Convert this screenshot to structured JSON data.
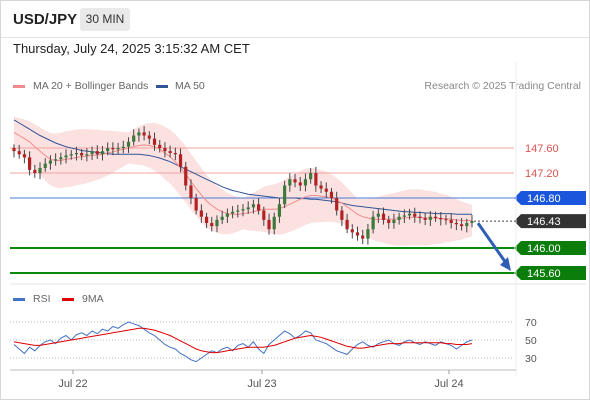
{
  "header": {
    "symbol": "USD/JPY",
    "timeframe": "30 MIN",
    "datetime": "Thursday, July 24, 2025 3:15:32 AM CET"
  },
  "legend": {
    "ma20_label": "MA 20 + Bollinger Bands",
    "ma50_label": "MA 50",
    "copyright": "Research © 2025 Trading Central",
    "ma20_color": "#f28b8b",
    "ma50_color": "#2f5597"
  },
  "rsi_legend": {
    "rsi_label": "RSI",
    "ma_label": "9MA",
    "rsi_color": "#4472c4",
    "ma_color": "#e00000"
  },
  "chart_data": {
    "type": "candlestick",
    "price_range": [
      145.5,
      148.2
    ],
    "x_labels": [
      "Jul 22",
      "Jul 23",
      "Jul 24"
    ],
    "levels": [
      {
        "label": "147.60",
        "value": 147.6,
        "style": "red-line",
        "color": "#d9534f"
      },
      {
        "label": "147.20",
        "value": 147.2,
        "style": "red-line",
        "color": "#d9534f"
      },
      {
        "label": "146.80",
        "value": 146.8,
        "style": "blue-line",
        "color": "#1a56db"
      },
      {
        "label": "146.43",
        "value": 146.43,
        "style": "current",
        "color": "#333333"
      },
      {
        "label": "146.00",
        "value": 146.0,
        "style": "green-line",
        "color": "#0a7d0a"
      },
      {
        "label": "145.60",
        "value": 145.6,
        "style": "green-line",
        "color": "#0a7d0a"
      }
    ],
    "closes": [
      147.55,
      147.5,
      147.45,
      147.25,
      147.2,
      147.28,
      147.35,
      147.4,
      147.42,
      147.45,
      147.48,
      147.5,
      147.52,
      147.48,
      147.5,
      147.55,
      147.5,
      147.55,
      147.6,
      147.58,
      147.6,
      147.62,
      147.7,
      147.8,
      147.85,
      147.8,
      147.75,
      147.65,
      147.6,
      147.55,
      147.52,
      147.5,
      147.3,
      147.0,
      146.8,
      146.6,
      146.5,
      146.4,
      146.35,
      146.45,
      146.5,
      146.55,
      146.58,
      146.6,
      146.62,
      146.65,
      146.7,
      146.6,
      146.45,
      146.3,
      146.5,
      146.7,
      147.0,
      147.1,
      147.05,
      147.0,
      147.1,
      147.2,
      147.0,
      146.95,
      146.9,
      146.8,
      146.6,
      146.45,
      146.3,
      146.25,
      146.2,
      146.15,
      146.3,
      146.5,
      146.55,
      146.45,
      146.4,
      146.45,
      146.5,
      146.52,
      146.55,
      146.5,
      146.48,
      146.45,
      146.5,
      146.48,
      146.46,
      146.45,
      146.4,
      146.38,
      146.35,
      146.4,
      146.43
    ],
    "ma20": [
      147.85,
      147.8,
      147.75,
      147.7,
      147.62,
      147.55,
      147.48,
      147.42,
      147.4,
      147.4,
      147.42,
      147.43,
      147.45,
      147.46,
      147.47,
      147.48,
      147.49,
      147.5,
      147.52,
      147.54,
      147.56,
      147.58,
      147.6,
      147.62,
      147.64,
      147.65,
      147.64,
      147.62,
      147.58,
      147.52,
      147.46,
      147.38,
      147.28,
      147.18,
      147.06,
      146.95,
      146.85,
      146.75,
      146.68,
      146.62,
      146.58,
      146.55,
      146.54,
      146.54,
      146.55,
      146.56,
      146.58,
      146.6,
      146.62,
      146.62,
      146.62,
      146.63,
      146.66,
      146.7,
      146.74,
      146.78,
      146.82,
      146.84,
      146.84,
      146.83,
      146.82,
      146.8,
      146.76,
      146.72,
      146.66,
      146.6,
      146.54,
      146.5,
      146.48,
      146.46,
      146.46,
      146.46,
      146.46,
      146.46,
      146.47,
      146.48,
      146.49,
      146.49,
      146.49,
      146.48,
      146.48,
      146.48,
      146.47,
      146.47,
      146.46,
      146.45,
      146.44,
      146.44,
      146.44
    ],
    "ma50": [
      148.05,
      148.0,
      147.95,
      147.9,
      147.85,
      147.8,
      147.76,
      147.72,
      147.68,
      147.65,
      147.62,
      147.6,
      147.58,
      147.56,
      147.55,
      147.54,
      147.53,
      147.52,
      147.51,
      147.5,
      147.5,
      147.5,
      147.5,
      147.5,
      147.5,
      147.49,
      147.48,
      147.46,
      147.44,
      147.41,
      147.38,
      147.34,
      147.3,
      147.26,
      147.22,
      147.18,
      147.14,
      147.1,
      147.06,
      147.02,
      146.98,
      146.95,
      146.92,
      146.9,
      146.88,
      146.86,
      146.85,
      146.84,
      146.83,
      146.82,
      146.81,
      146.8,
      146.8,
      146.8,
      146.8,
      146.79,
      146.79,
      146.78,
      146.78,
      146.77,
      146.76,
      146.75,
      146.74,
      146.72,
      146.7,
      146.68,
      146.67,
      146.66,
      146.65,
      146.64,
      146.63,
      146.62,
      146.61,
      146.6,
      146.59,
      146.58,
      146.58,
      146.57,
      146.57,
      146.56,
      146.56,
      146.55,
      146.55,
      146.55,
      146.55,
      146.54,
      146.54,
      146.54,
      146.54
    ],
    "forecast": {
      "from": 146.43,
      "to": 145.6
    },
    "rsi": {
      "ticks": [
        "70",
        "50",
        "30"
      ],
      "range": [
        20,
        80
      ],
      "values": [
        45,
        40,
        35,
        42,
        38,
        44,
        48,
        50,
        46,
        52,
        55,
        50,
        56,
        58,
        55,
        60,
        57,
        62,
        60,
        65,
        63,
        67,
        70,
        68,
        66,
        62,
        58,
        55,
        50,
        45,
        42,
        40,
        35,
        32,
        28,
        26,
        30,
        34,
        38,
        36,
        40,
        42,
        38,
        44,
        46,
        42,
        48,
        40,
        35,
        45,
        50,
        55,
        60,
        57,
        52,
        55,
        60,
        58,
        50,
        48,
        46,
        42,
        38,
        36,
        34,
        40,
        45,
        48,
        44,
        42,
        46,
        48,
        50,
        46,
        44,
        48,
        50,
        47,
        45,
        48,
        46,
        44,
        48,
        46,
        44,
        40,
        44,
        48,
        50
      ],
      "ma_values": [
        48,
        47,
        46,
        45,
        44,
        44,
        45,
        46,
        47,
        48,
        49,
        50,
        51,
        52,
        53,
        54,
        55,
        56,
        57,
        58,
        59,
        60,
        61,
        62,
        63,
        63,
        62,
        61,
        59,
        57,
        55,
        52,
        49,
        46,
        43,
        40,
        38,
        37,
        36,
        36,
        37,
        38,
        39,
        40,
        41,
        42,
        42,
        42,
        42,
        43,
        44,
        46,
        48,
        50,
        52,
        53,
        54,
        55,
        54,
        53,
        51,
        49,
        47,
        45,
        43,
        42,
        41,
        41,
        42,
        43,
        44,
        45,
        46,
        46,
        46,
        47,
        47,
        47,
        47,
        47,
        47,
        47,
        47,
        46,
        46,
        45,
        45,
        45,
        46
      ]
    }
  }
}
